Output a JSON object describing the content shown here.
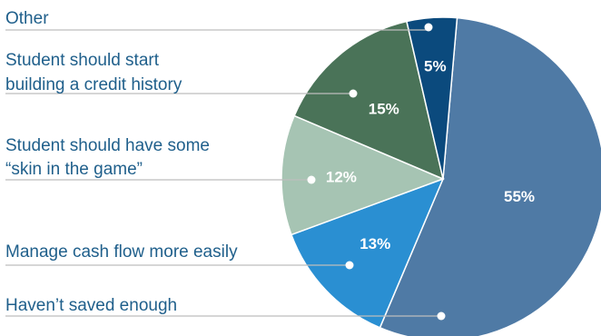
{
  "chart_data": {
    "type": "pie",
    "slices": [
      {
        "label": "Haven’t saved enough",
        "value": 55,
        "display": "55%",
        "color": "#4f7aa5"
      },
      {
        "label": "Manage cash flow more easily",
        "value": 13,
        "display": "13%",
        "color": "#2a8fd2"
      },
      {
        "label": "Student should have some “skin in the game”",
        "value": 12,
        "display": "12%",
        "color": "#a6c4b3"
      },
      {
        "label": "Student should start building a credit history",
        "value": 15,
        "display": "15%",
        "color": "#4a7358"
      },
      {
        "label": "Other",
        "value": 5,
        "display": "5%",
        "color": "#0b4a7d"
      }
    ]
  }
}
